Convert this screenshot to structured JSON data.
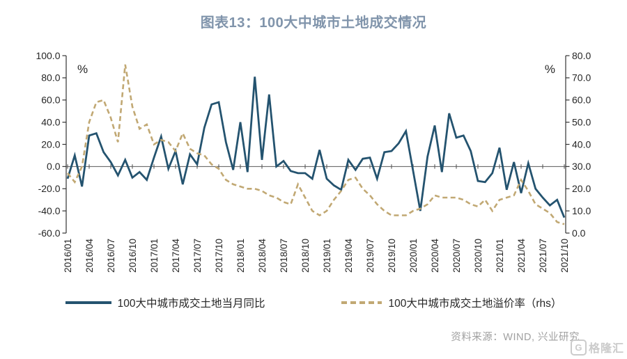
{
  "title": "图表13：100大中城市土地成交情况",
  "source": "资料来源：WIND, 兴业研究",
  "watermark": {
    "icon": "G",
    "text": "格隆汇"
  },
  "colors": {
    "title_text": "#8094AB",
    "axis_text": "#262626",
    "axis_line": "#333333",
    "zero_line": "#595959",
    "source_text": "#A0A0A0",
    "watermark": "#CBCBCB"
  },
  "chart_data": {
    "type": "line",
    "title": "图表13：100大中城市土地成交情况",
    "grid": false,
    "legend_position": "bottom",
    "x": [
      "2016/01",
      "2016/02",
      "2016/03",
      "2016/04",
      "2016/05",
      "2016/06",
      "2016/07",
      "2016/08",
      "2016/09",
      "2016/10",
      "2016/11",
      "2016/12",
      "2017/01",
      "2017/02",
      "2017/03",
      "2017/04",
      "2017/05",
      "2017/06",
      "2017/07",
      "2017/08",
      "2017/09",
      "2017/10",
      "2017/11",
      "2017/12",
      "2018/01",
      "2018/02",
      "2018/03",
      "2018/04",
      "2018/05",
      "2018/06",
      "2018/07",
      "2018/08",
      "2018/09",
      "2018/10",
      "2018/11",
      "2018/12",
      "2019/01",
      "2019/02",
      "2019/03",
      "2019/04",
      "2019/05",
      "2019/06",
      "2019/07",
      "2019/08",
      "2019/09",
      "2019/10",
      "2019/11",
      "2019/12",
      "2020/01",
      "2020/02",
      "2020/03",
      "2020/04",
      "2020/05",
      "2020/06",
      "2020/07",
      "2020/08",
      "2020/09",
      "2020/10",
      "2020/11",
      "2020/12",
      "2021/01",
      "2021/02",
      "2021/03",
      "2021/04",
      "2021/05",
      "2021/06",
      "2021/07",
      "2021/08",
      "2021/09",
      "2021/10"
    ],
    "x_tick_labels": [
      "2016/01",
      "2016/04",
      "2016/07",
      "2016/10",
      "2017/01",
      "2017/04",
      "2017/07",
      "2017/10",
      "2018/01",
      "2018/04",
      "2018/07",
      "2018/10",
      "2019/01",
      "2019/04",
      "2019/07",
      "2019/10",
      "2020/01",
      "2020/04",
      "2020/07",
      "2020/10",
      "2021/01",
      "2021/04",
      "2021/07",
      "2021/10"
    ],
    "left_axis": {
      "unit": "%",
      "min": -60,
      "max": 100,
      "step": 20,
      "tick_labels": [
        "100.0",
        "80.0",
        "60.0",
        "40.0",
        "20.0",
        "0.0",
        "-20.0",
        "-40.0",
        "-60.0"
      ]
    },
    "right_axis": {
      "unit": "%",
      "min": 0,
      "max": 80,
      "step": 10,
      "tick_labels": [
        "80.0",
        "70.0",
        "60.0",
        "50.0",
        "40.0",
        "30.0",
        "20.0",
        "10.0",
        "0.0"
      ]
    },
    "series": [
      {
        "name": "100大中城市成交土地当月同比",
        "axis": "left",
        "line_style": "solid",
        "color": "#24536F",
        "values": [
          -11,
          10,
          -18,
          28,
          30,
          13,
          4,
          -8,
          6,
          -10,
          -5,
          -12,
          8,
          27,
          -2,
          14,
          -16,
          11,
          2,
          35,
          56,
          58,
          22,
          -3,
          40,
          -5,
          81,
          6,
          65,
          0,
          5,
          -4,
          -6,
          -6,
          -11,
          15,
          -11,
          -17,
          -21,
          6,
          -3,
          7,
          8,
          -11,
          13,
          14,
          21,
          32,
          -4,
          -40,
          9,
          37,
          -5,
          48,
          26,
          28,
          14,
          -13,
          -14,
          -6,
          17,
          -21,
          4,
          -24,
          3,
          -20,
          -28,
          -35,
          -30,
          -46
        ]
      },
      {
        "name": "100大中城市成交土地溢价率（rhs）",
        "axis": "right",
        "line_style": "dashed",
        "color": "#C1A873",
        "values": [
          27,
          23,
          30,
          50,
          59,
          60,
          52,
          41,
          76,
          57,
          47,
          49,
          40,
          42,
          41,
          37,
          45,
          38,
          36,
          35,
          31,
          29,
          24,
          22,
          21,
          20,
          20,
          19,
          17,
          16,
          14,
          13,
          22,
          16,
          10,
          8,
          10,
          15,
          19,
          24,
          25,
          20,
          17,
          13,
          10,
          8,
          8,
          8,
          10,
          11,
          13,
          17,
          16,
          16,
          16,
          15,
          13,
          12,
          15,
          10,
          15,
          16,
          17,
          24,
          19,
          13,
          11,
          9,
          5,
          4
        ]
      }
    ]
  }
}
